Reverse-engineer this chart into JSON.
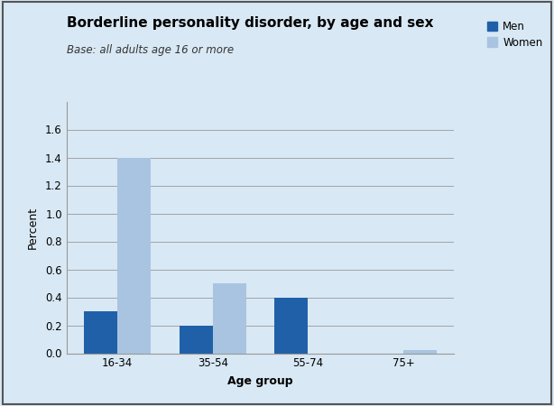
{
  "title": "Borderline personality disorder, by age and sex",
  "subtitle": "Base: all adults age 16 or more",
  "xlabel": "Age group",
  "ylabel": "Percent",
  "categories": [
    "16-34",
    "35-54",
    "55-74",
    "75+"
  ],
  "men_values": [
    0.3,
    0.2,
    0.4,
    0.0
  ],
  "women_values": [
    1.4,
    0.5,
    0.0,
    0.02
  ],
  "men_color": "#2060a8",
  "women_color": "#a8c4e0",
  "background_color": "#d8e8f4",
  "plot_bg_color": "#d8e8f4",
  "ylim": [
    0,
    1.8
  ],
  "yticks": [
    0.0,
    0.2,
    0.4,
    0.6,
    0.8,
    1.0,
    1.2,
    1.4,
    1.6
  ],
  "bar_width": 0.35,
  "legend_labels": [
    "Men",
    "Women"
  ],
  "title_fontsize": 11,
  "subtitle_fontsize": 8.5,
  "axis_label_fontsize": 9,
  "tick_fontsize": 8.5,
  "legend_fontsize": 8.5
}
